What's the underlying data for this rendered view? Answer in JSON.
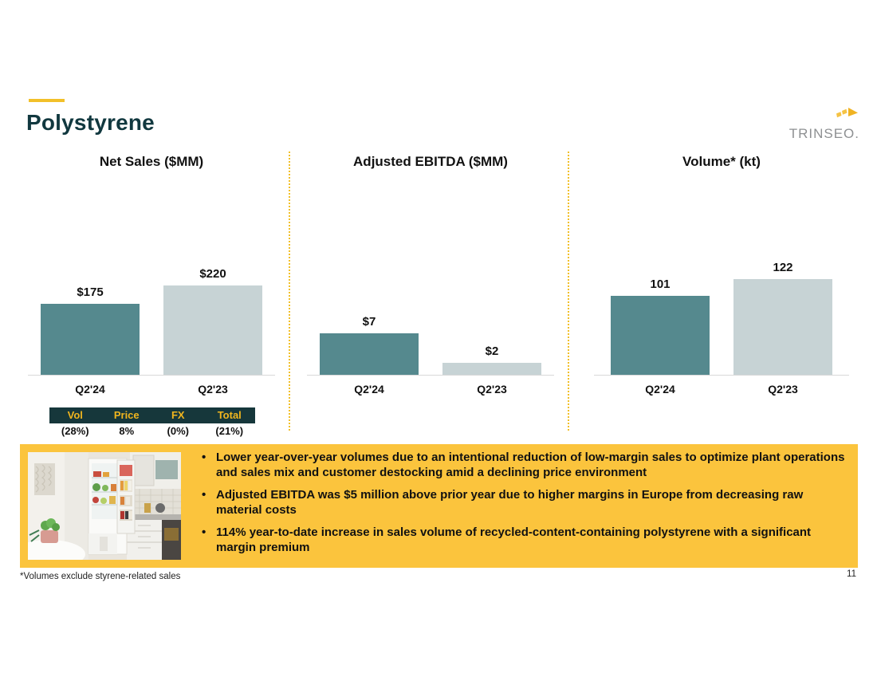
{
  "slide": {
    "title": "Polystyrene",
    "logo_text": "TRINSEO.",
    "page_number": "11",
    "footnote": "*Volumes exclude styrene-related sales",
    "colors": {
      "accent_yellow": "#F2C029",
      "title_teal": "#11383F",
      "logo_gray": "#8E9092",
      "bar_current": "#55898E",
      "bar_prior": "#C7D3D5",
      "box_yellow": "#FBC43D",
      "table_header_bg": "#16373B",
      "table_header_text": "#F0B51E"
    }
  },
  "chart_data": [
    {
      "type": "bar",
      "title": "Net Sales ($MM)",
      "categories": [
        "Q2'24",
        "Q2'23"
      ],
      "values": [
        175,
        220
      ],
      "labels": [
        "$175",
        "$220"
      ],
      "ylim": [
        0,
        220
      ],
      "grid": false,
      "legend": "none"
    },
    {
      "type": "bar",
      "title": "Adjusted EBITDA ($MM)",
      "categories": [
        "Q2'24",
        "Q2'23"
      ],
      "values": [
        7,
        2
      ],
      "labels": [
        "$7",
        "$2"
      ],
      "ylim": [
        0,
        7
      ],
      "grid": false,
      "legend": "none"
    },
    {
      "type": "bar",
      "title": "Volume* (kt)",
      "categories": [
        "Q2'24",
        "Q2'23"
      ],
      "values": [
        101,
        122
      ],
      "labels": [
        "101",
        "122"
      ],
      "ylim": [
        0,
        122
      ],
      "grid": false,
      "legend": "none"
    }
  ],
  "bridge_table": {
    "headers": [
      "Vol",
      "Price",
      "FX",
      "Total"
    ],
    "values": [
      "(28%)",
      "8%",
      "(0%)",
      "(21%)"
    ]
  },
  "callout": {
    "bullets": [
      "Lower year-over-year volumes due to an intentional reduction of low-margin sales to optimize plant operations and sales mix and customer destocking amid a declining price environment",
      "Adjusted EBITDA was $5 million above prior year due to higher margins in Europe from decreasing raw material costs",
      "114% year-to-date increase in sales volume of recycled-content-containing polystyrene with a significant margin premium"
    ]
  }
}
